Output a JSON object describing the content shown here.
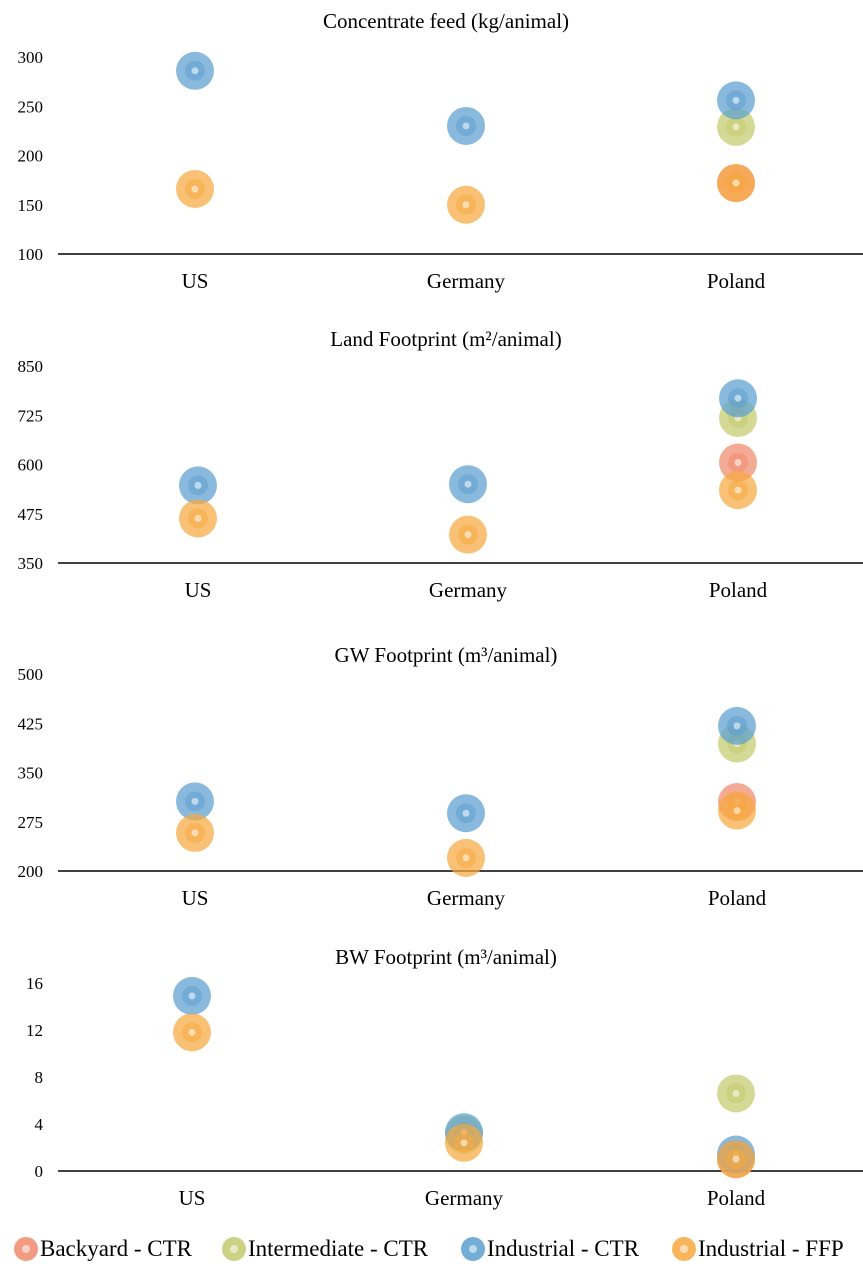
{
  "legend": {
    "items": [
      {
        "label": "Backyard - CTR",
        "color": "#f08a6e"
      },
      {
        "label": "Intermediate - CTR",
        "color": "#c3cb6e"
      },
      {
        "label": "Industrial - CTR",
        "color": "#5c9fd0"
      },
      {
        "label": "Industrial - FFP",
        "color": "#f7a940"
      }
    ]
  },
  "chart_data": [
    {
      "type": "scatter",
      "title": "Concentrate feed (kg/animal)",
      "categories": [
        "US",
        "Germany",
        "Poland"
      ],
      "ylim": [
        100,
        300
      ],
      "yticks": [
        100,
        150,
        200,
        250,
        300
      ],
      "series": [
        {
          "name": "Backyard - CTR",
          "color": "#f08a6e",
          "values": [
            null,
            null,
            172
          ]
        },
        {
          "name": "Intermediate - CTR",
          "color": "#c3cb6e",
          "values": [
            null,
            null,
            229
          ]
        },
        {
          "name": "Industrial - CTR",
          "color": "#5c9fd0",
          "values": [
            286,
            230,
            256
          ]
        },
        {
          "name": "Industrial - FFP",
          "color": "#f7a940",
          "values": [
            166,
            150,
            172
          ]
        }
      ]
    },
    {
      "type": "scatter",
      "title": "Land Footprint (m²/animal)",
      "categories": [
        "US",
        "Germany",
        "Poland"
      ],
      "ylim": [
        350,
        850
      ],
      "yticks": [
        350,
        475,
        600,
        725,
        850
      ],
      "series": [
        {
          "name": "Backyard - CTR",
          "color": "#f08a6e",
          "values": [
            null,
            null,
            605
          ]
        },
        {
          "name": "Intermediate - CTR",
          "color": "#c3cb6e",
          "values": [
            null,
            null,
            718
          ]
        },
        {
          "name": "Industrial - CTR",
          "color": "#5c9fd0",
          "values": [
            547,
            550,
            768
          ]
        },
        {
          "name": "Industrial - FFP",
          "color": "#f7a940",
          "values": [
            463,
            422,
            535
          ]
        }
      ]
    },
    {
      "type": "scatter",
      "title": "GW Footprint (m³/animal)",
      "categories": [
        "US",
        "Germany",
        "Poland"
      ],
      "ylim": [
        200,
        500
      ],
      "yticks": [
        200,
        275,
        350,
        425,
        500
      ],
      "series": [
        {
          "name": "Backyard - CTR",
          "color": "#f08a6e",
          "values": [
            null,
            null,
            305
          ]
        },
        {
          "name": "Intermediate - CTR",
          "color": "#c3cb6e",
          "values": [
            null,
            null,
            394
          ]
        },
        {
          "name": "Industrial - CTR",
          "color": "#5c9fd0",
          "values": [
            306,
            288,
            421
          ]
        },
        {
          "name": "Industrial - FFP",
          "color": "#f7a940",
          "values": [
            258,
            220,
            292
          ]
        }
      ]
    },
    {
      "type": "scatter",
      "title": "BW Footprint (m³/animal)",
      "categories": [
        "US",
        "Germany",
        "Poland"
      ],
      "ylim": [
        0,
        16
      ],
      "yticks": [
        0,
        4,
        8,
        12,
        16
      ],
      "series": [
        {
          "name": "Backyard - CTR",
          "color": "#f08a6e",
          "values": [
            null,
            null,
            1.0
          ]
        },
        {
          "name": "Intermediate - CTR",
          "color": "#c3cb6e",
          "values": [
            null,
            3.1,
            6.6
          ]
        },
        {
          "name": "Industrial - CTR",
          "color": "#5c9fd0",
          "values": [
            14.9,
            3.3,
            1.4
          ]
        },
        {
          "name": "Industrial - FFP",
          "color": "#f7a940",
          "values": [
            11.8,
            2.4,
            1.0
          ]
        }
      ]
    }
  ]
}
